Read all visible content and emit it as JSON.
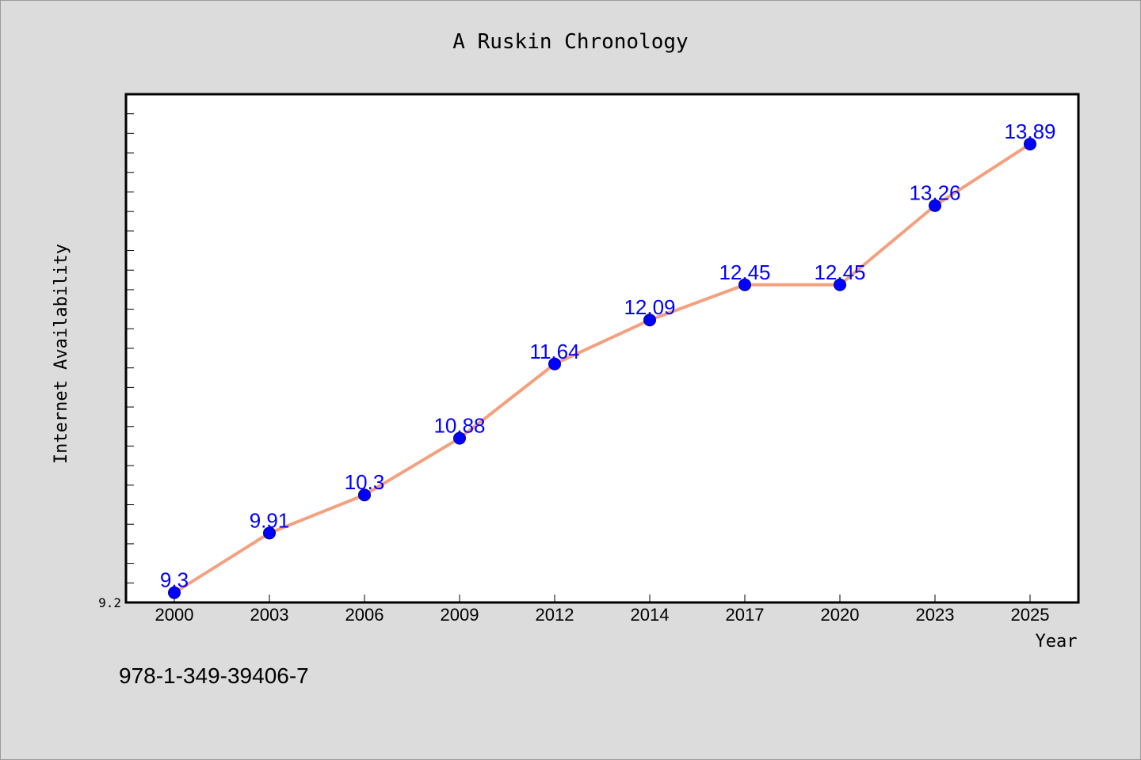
{
  "chart_data": {
    "type": "line",
    "title": "A Ruskin Chronology",
    "xlabel": "Year",
    "ylabel": "Internet Availability",
    "categories": [
      "2000",
      "2003",
      "2006",
      "2009",
      "2012",
      "2014",
      "2017",
      "2020",
      "2023",
      "2025"
    ],
    "values": [
      9.3,
      9.91,
      10.3,
      10.88,
      11.64,
      12.09,
      12.45,
      12.45,
      13.26,
      13.89
    ],
    "data_labels": [
      "9.3",
      "9.91",
      "10.3",
      "10.88",
      "11.64",
      "12.09",
      "12.45",
      "12.45",
      "13.26",
      "13.89"
    ],
    "ytick_labels": [
      "9.2"
    ],
    "ylim": [
      9.2,
      14.4
    ],
    "grid": false,
    "line_color": "#f4a07e",
    "marker_color": "#0000ff",
    "label_color": "#0000ff",
    "background_color": "#dcdcdc",
    "plot_background_color": "#ffffff"
  },
  "footer": {
    "isbn": "978-1-349-39406-7"
  }
}
